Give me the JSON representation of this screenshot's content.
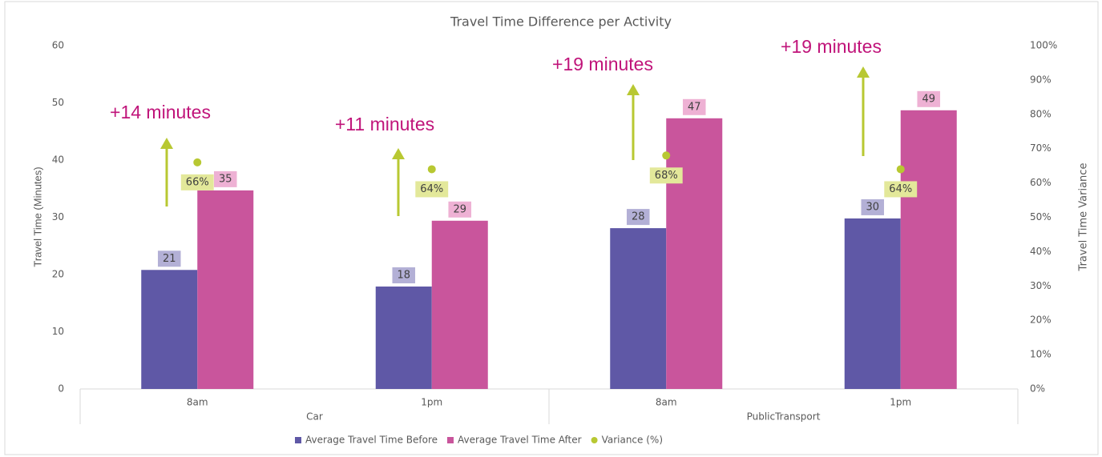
{
  "chart_data": {
    "type": "bar",
    "title": "Travel Time Difference per Activity",
    "y_label": "Travel Time (Minutes)",
    "y2_label": "Travel Time Variance",
    "categories": [
      "8am",
      "1pm",
      "8am",
      "1pm"
    ],
    "groups": [
      {
        "name": "Car",
        "span": 2
      },
      {
        "name": "PublicTransport",
        "span": 2
      }
    ],
    "series": [
      {
        "name": "Average Travel Time Before",
        "type": "bar",
        "color": "#5f58a6",
        "label_bg": "#b3b0d6",
        "values": [
          20.8,
          17.9,
          28.1,
          29.8
        ],
        "value_labels": [
          "21",
          "18",
          "28",
          "30"
        ]
      },
      {
        "name": "Average Travel Time After",
        "type": "bar",
        "color": "#c9559c",
        "label_bg": "#eeb1d4",
        "values": [
          34.7,
          29.4,
          47.3,
          48.7
        ],
        "value_labels": [
          "35",
          "29",
          "47",
          "49"
        ]
      },
      {
        "name": "Variance (%)",
        "type": "scatter",
        "axis": "y2",
        "color": "#b8c832",
        "label_bg": "#e3e89a",
        "values": [
          66,
          64,
          68,
          64
        ],
        "value_labels": [
          "66%",
          "64%",
          "68%",
          "64%"
        ]
      }
    ],
    "annotations": [
      "+14 minutes",
      "+11 minutes",
      "+19 minutes",
      "+19 minutes"
    ],
    "ylim": [
      0,
      60
    ],
    "yticks": [
      0,
      10,
      20,
      30,
      40,
      50,
      60
    ],
    "y2lim": [
      0,
      100
    ],
    "y2ticks": [
      {
        "value": 0,
        "label": "0%"
      },
      {
        "value": 10,
        "label": "10%"
      },
      {
        "value": 20,
        "label": "20%"
      },
      {
        "value": 30,
        "label": "30%"
      },
      {
        "value": 40,
        "label": "40%"
      },
      {
        "value": 50,
        "label": "50%"
      },
      {
        "value": 60,
        "label": "60%"
      },
      {
        "value": 70,
        "label": "70%"
      },
      {
        "value": 80,
        "label": "80%"
      },
      {
        "value": 90,
        "label": "90%"
      },
      {
        "value": 100,
        "label": "100%"
      }
    ],
    "grid": false,
    "legend": "bottom"
  }
}
